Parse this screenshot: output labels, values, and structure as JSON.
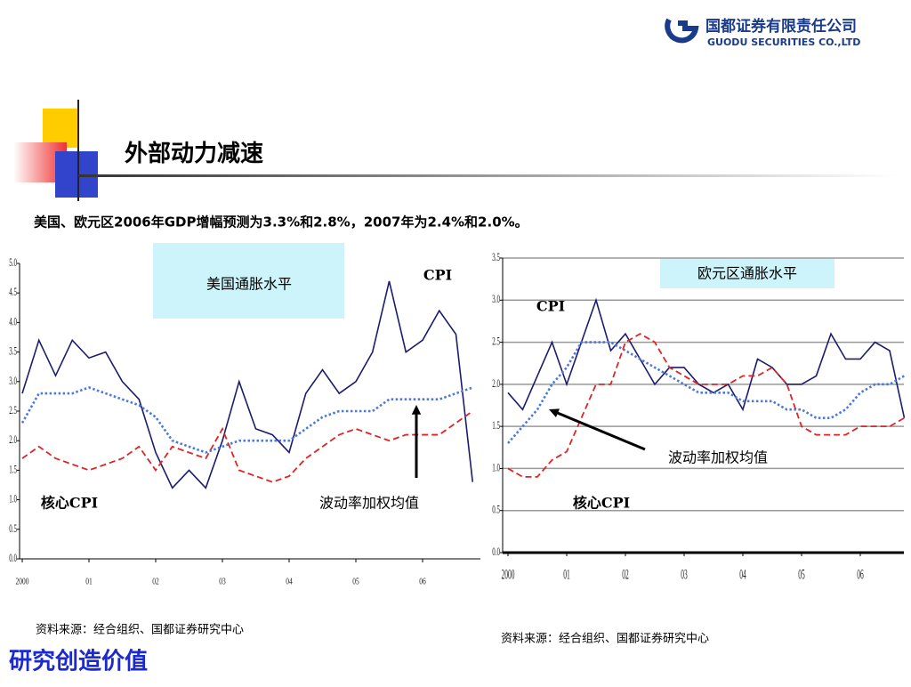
{
  "header": {
    "company": "国都证券有限责任公司",
    "company_en": "GUODU SECURITIES CO.,LTD",
    "title": "外部动力减速",
    "subtitle": "美国、欧元区2006年GDP增幅预测为3.3%和2.8%，2007年为2.4%和2.0%。"
  },
  "footer": {
    "slogan": "研究创造价值"
  },
  "chart_data": [
    {
      "type": "line",
      "title": "美国通胀水平",
      "source": "资料来源：经合组织、国都证券研究中心",
      "categories": [
        "2000",
        null,
        null,
        null,
        "01",
        null,
        null,
        null,
        "02",
        null,
        null,
        null,
        "03",
        null,
        null,
        null,
        "04",
        null,
        null,
        null,
        "05",
        null,
        null,
        null,
        "06",
        null,
        null,
        null
      ],
      "series": [
        {
          "name": "CPI",
          "color": "#1c1c70",
          "values": [
            2.8,
            3.7,
            3.1,
            3.7,
            3.4,
            3.5,
            3.0,
            2.7,
            1.8,
            1.2,
            1.5,
            1.2,
            2.0,
            3.0,
            2.2,
            2.1,
            1.8,
            2.8,
            3.2,
            2.8,
            3.0,
            3.5,
            4.7,
            3.5,
            3.7,
            4.2,
            3.8,
            1.3
          ]
        },
        {
          "name": "波动率加权均值",
          "color": "#4a78e0",
          "values": [
            2.3,
            2.8,
            2.8,
            2.8,
            2.9,
            2.8,
            2.7,
            2.6,
            2.4,
            2.0,
            1.9,
            1.8,
            1.9,
            2.0,
            2.0,
            2.0,
            2.0,
            2.2,
            2.4,
            2.5,
            2.5,
            2.5,
            2.7,
            2.7,
            2.7,
            2.7,
            2.8,
            2.9
          ]
        },
        {
          "name": "核心CPI",
          "color": "#e02424",
          "values": [
            1.7,
            1.9,
            1.7,
            1.6,
            1.5,
            1.6,
            1.7,
            1.9,
            1.5,
            1.9,
            1.8,
            1.7,
            2.2,
            1.5,
            1.4,
            1.3,
            1.4,
            1.7,
            1.9,
            2.1,
            2.2,
            2.1,
            2.0,
            2.1,
            2.1,
            2.1,
            2.3,
            2.5
          ]
        }
      ],
      "ylim": [
        0,
        5
      ],
      "yticks": [
        {
          "value": 0,
          "label": "0.0"
        },
        0.5,
        {
          "value": 1,
          "label": "1.0"
        },
        1.5,
        {
          "value": 2,
          "label": "2.0"
        },
        2.5,
        {
          "value": 3,
          "label": "3.0"
        },
        3.5,
        {
          "value": 4,
          "label": "4.0"
        },
        4.5,
        {
          "value": 5,
          "label": "5.0"
        }
      ],
      "grid": false
    },
    {
      "type": "line",
      "title": "欧元区通胀水平",
      "source": "资料来源：经合组织、国都证券研究中心",
      "categories": [
        "2000",
        null,
        null,
        null,
        "01",
        null,
        null,
        null,
        "02",
        null,
        null,
        null,
        "03",
        null,
        null,
        null,
        "04",
        null,
        null,
        null,
        "05",
        null,
        null,
        null,
        "06",
        null,
        null,
        null
      ],
      "series": [
        {
          "name": "CPI",
          "color": "#1c1c70",
          "values": [
            1.9,
            1.7,
            2.1,
            2.5,
            2.0,
            2.5,
            3.0,
            2.4,
            2.6,
            2.3,
            2.0,
            2.2,
            2.2,
            2.0,
            1.9,
            2.0,
            1.7,
            2.3,
            2.2,
            2.0,
            2.0,
            2.1,
            2.6,
            2.3,
            2.3,
            2.5,
            2.4,
            1.6
          ]
        },
        {
          "name": "波动率加权均值",
          "color": "#4a78e0",
          "values": [
            1.3,
            1.5,
            1.7,
            2.0,
            2.2,
            2.5,
            2.5,
            2.5,
            2.4,
            2.3,
            2.2,
            2.1,
            2.0,
            1.9,
            1.9,
            1.9,
            1.8,
            1.8,
            1.8,
            1.7,
            1.7,
            1.6,
            1.6,
            1.7,
            1.9,
            2.0,
            2.0,
            2.1
          ]
        },
        {
          "name": "核心CPI",
          "color": "#e02424",
          "values": [
            1.0,
            0.9,
            0.9,
            1.1,
            1.2,
            1.6,
            2.0,
            2.0,
            2.5,
            2.6,
            2.5,
            2.2,
            2.1,
            2.0,
            2.0,
            2.0,
            2.1,
            2.1,
            2.2,
            2.0,
            1.5,
            1.4,
            1.4,
            1.4,
            1.5,
            1.5,
            1.5,
            1.6
          ]
        }
      ],
      "ylim": [
        0,
        3.5
      ],
      "yticks": [
        {
          "value": 0,
          "label": "0.0"
        },
        0.5,
        {
          "value": 1,
          "label": "1.0"
        },
        1.5,
        {
          "value": 2,
          "label": "2.0"
        },
        2.5,
        {
          "value": 3,
          "label": "3.0"
        },
        3.5
      ],
      "grid": true
    }
  ]
}
